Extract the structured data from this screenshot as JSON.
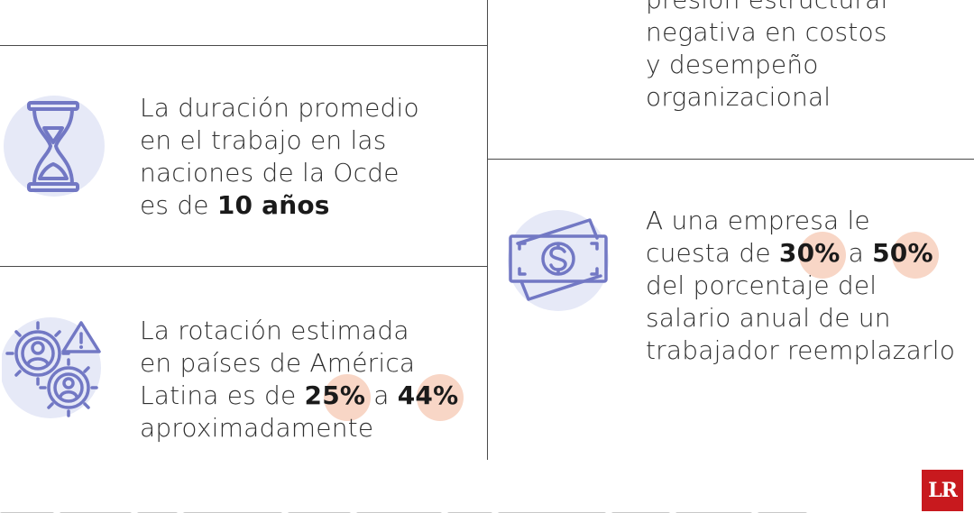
{
  "cards": {
    "pressure": {
      "lines": [
        "presión estructural",
        "negativa en costos",
        "y desempeño",
        "organizacional"
      ]
    },
    "duration": {
      "line1": "La duración promedio",
      "line2": "en el trabajo en las",
      "line3": "naciones de la Ocde",
      "line4_prefix": "es de ",
      "line4_bold": "10 años",
      "icon": "hourglass-icon"
    },
    "rotation": {
      "line1": "La rotación estimada",
      "line2": "en países de América",
      "line3_prefix": "Latina es de ",
      "value_low": "25%",
      "connector": " a ",
      "value_high": "44%",
      "line4": "aproximadamente",
      "icon": "gears-people-warning-icon"
    },
    "cost": {
      "line1": "A una empresa le",
      "line2_prefix": "cuesta de ",
      "value_low": "30%",
      "connector": " a ",
      "value_high": "50%",
      "line3": "del porcentaje del",
      "line4": "salario anual de un",
      "line5": "trabajador reemplazarlo",
      "icon": "money-bill-icon"
    }
  },
  "brand": {
    "logo_text": "LR",
    "logo_color": "#c8191e"
  },
  "colors": {
    "icon_stroke": "#7278c4",
    "icon_bg": "#e6e9f7",
    "highlight": "#f8d6c6"
  }
}
